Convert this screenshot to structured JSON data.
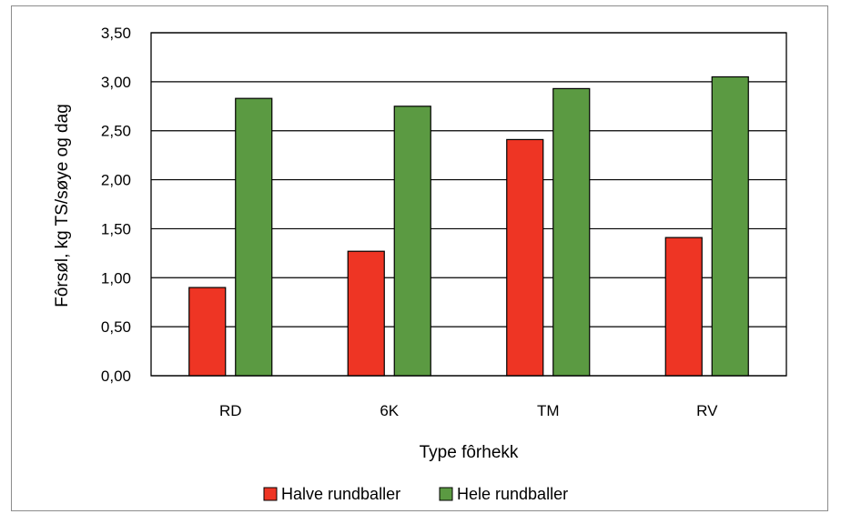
{
  "chart_data": {
    "type": "bar",
    "title": "",
    "xlabel": "Type fôrhekk",
    "ylabel": "Fôrsøl, kg TS/søye og dag",
    "categories": [
      "RD",
      "6K",
      "TM",
      "RV"
    ],
    "ylim": [
      0,
      3.5
    ],
    "yticks": [
      "0,00",
      "0,50",
      "1,00",
      "1,50",
      "2,00",
      "2,50",
      "3,00",
      "3,50"
    ],
    "grid": true,
    "legend_position": "bottom",
    "series": [
      {
        "name": "Halve rundballer",
        "color": "#ee3524",
        "values": [
          0.9,
          1.27,
          2.41,
          1.41
        ]
      },
      {
        "name": "Hele rundballer",
        "color": "#5b9a42",
        "values": [
          2.83,
          2.75,
          2.93,
          3.05
        ]
      }
    ]
  }
}
